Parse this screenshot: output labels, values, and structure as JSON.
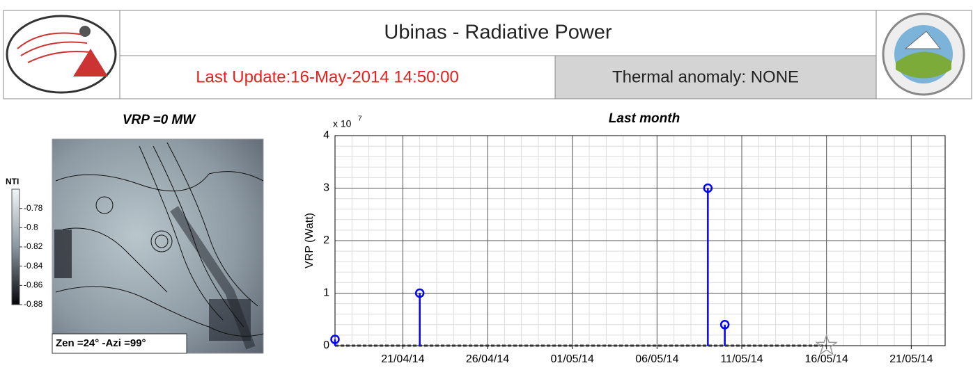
{
  "header": {
    "title": "Ubinas - Radiative Power",
    "last_update": "Last Update:16-May-2014 14:50:00",
    "thermal_anomaly": "Thermal anomaly:  NONE"
  },
  "image_panel": {
    "title": "VRP =0 MW",
    "colorbar_label": "NTI",
    "clim": [
      -0.88,
      -0.76
    ],
    "colorbar_ticks": [
      -0.78,
      -0.8,
      -0.82,
      -0.84,
      -0.86,
      -0.88
    ],
    "angles": "Zen =24° -Azi =99°"
  },
  "chart_data": {
    "type": "stem",
    "title": "Last month",
    "y_label": "VRP (Watt)",
    "y_multiplier": "x 10",
    "y_exponent": "7",
    "x": [
      "2014-04-17",
      "2014-04-22",
      "2014-05-09",
      "2014-05-10"
    ],
    "values": [
      0.12,
      1,
      3,
      0.4
    ],
    "color": "#0000ff",
    "xlim": [
      "2014-04-17",
      "2014-05-23"
    ],
    "xticks": [
      {
        "value": "2014-04-21",
        "label": "21/04/14"
      },
      {
        "value": "2014-04-26",
        "label": "26/04/14"
      },
      {
        "value": "2014-05-01",
        "label": "01/05/14"
      },
      {
        "value": "2014-05-06",
        "label": "06/05/14"
      },
      {
        "value": "2014-05-11",
        "label": "11/05/14"
      },
      {
        "value": "2014-05-16",
        "label": "16/05/14"
      },
      {
        "value": "2014-05-21",
        "label": "21/05/14"
      }
    ],
    "ylim": [
      0,
      4
    ],
    "yticks": [
      0,
      1,
      2,
      3,
      4
    ],
    "grid": true,
    "now_marker": {
      "x": "2014-05-16",
      "value": 0
    }
  }
}
